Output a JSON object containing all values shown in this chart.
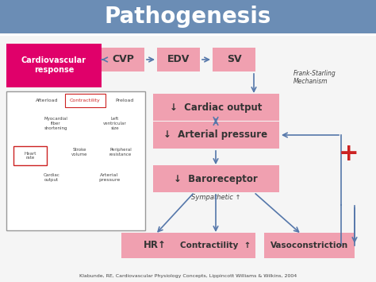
{
  "title": "Pathogenesis",
  "title_bg": "#6b8db5",
  "title_color": "white",
  "title_fontsize": 20,
  "bg_color": "#f0f0f0",
  "content_bg": "#f5f5f5",
  "pink_box_color": "#f0a0b0",
  "magenta_box_color": "#e0006a",
  "red_arrow_color": "#cc0000",
  "blue_arrow_color": "#5577aa",
  "citation": "Klabunde, RE, Cardiovascular Physiology Concepts, Lippincott Williams & Wilkins, 2004",
  "cvp_label": "CVP",
  "edv_label": "EDV",
  "sv_label": "SV",
  "frank_starling": "Frank-Starling\nMechanism",
  "cardio_label": "Cardiovascular\nresponse",
  "cardiac_output": "↓  Cardiac output",
  "arterial_pressure": "↓  Arterial pressure",
  "baroreceptor": "↓  Baroreceptor",
  "sympathetic": "Sympathetic ↑",
  "hr_label": "HR↑",
  "contractility_label": "Contractility  ↑",
  "vasoconstriction_label": "Vasoconstriction"
}
